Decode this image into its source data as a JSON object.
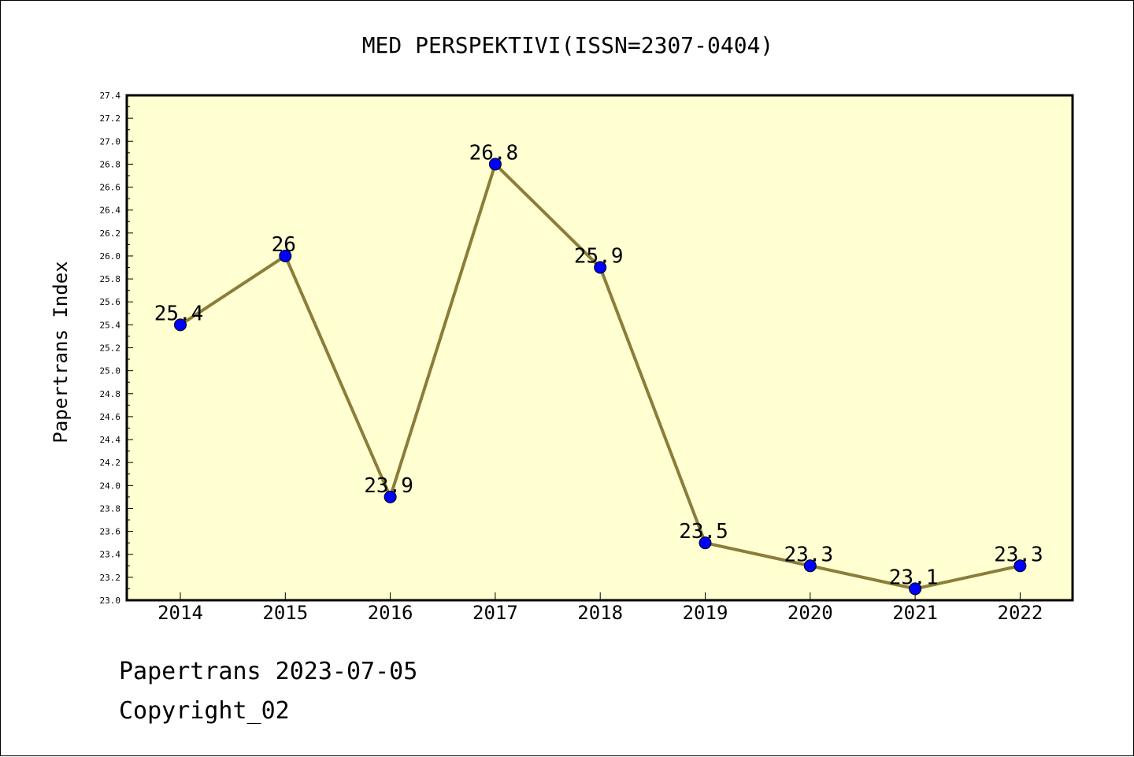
{
  "chart_data": {
    "type": "line",
    "title": "MED PERSPEKTIVI(ISSN=2307-0404)",
    "xlabel": "",
    "ylabel": "Papertrans Index",
    "categories": [
      "2014",
      "2015",
      "2016",
      "2017",
      "2018",
      "2019",
      "2020",
      "2021",
      "2022"
    ],
    "series": [
      {
        "values": [
          25.4,
          26,
          23.9,
          26.8,
          25.9,
          23.5,
          23.3,
          23.1,
          23.3
        ],
        "labels": [
          "25.4",
          "26",
          "23.9",
          "26.8",
          "25.9",
          "23.5",
          "23.3",
          "23.1",
          "23.3"
        ]
      }
    ],
    "ylim": [
      23.0,
      27.4
    ],
    "ytick_step": 0.2,
    "grid": false,
    "colors": {
      "plot_background": "#ffffd2",
      "line": "#8b7d3a",
      "marker": "#0000ff"
    }
  },
  "footer": {
    "date_text": "Papertrans 2023-07-05",
    "copyright_text": "Copyright_02"
  }
}
